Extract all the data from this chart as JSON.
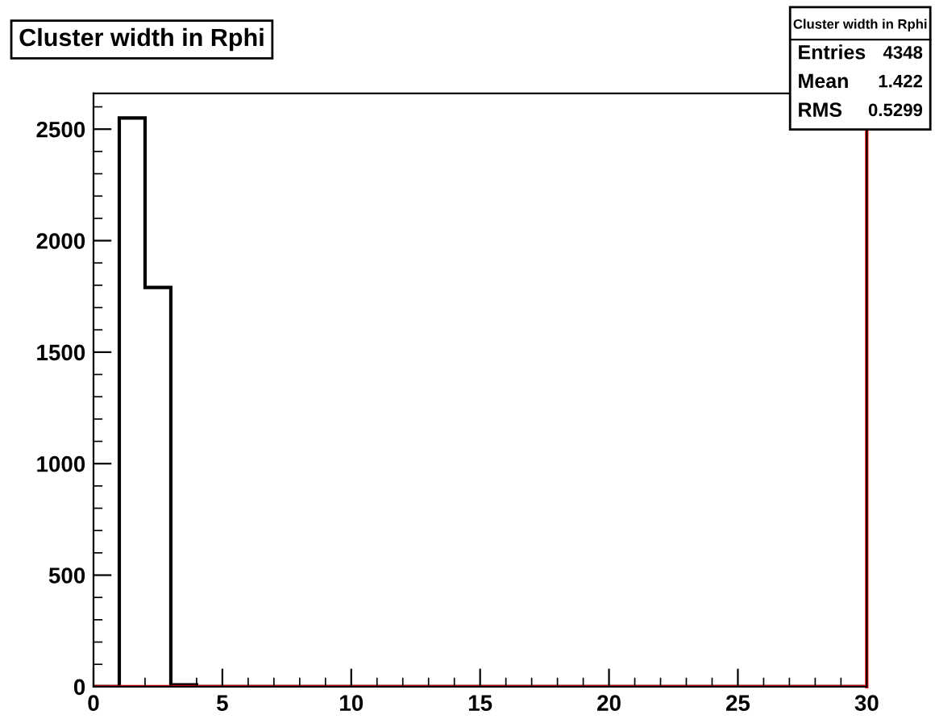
{
  "chart_data": {
    "type": "histogram",
    "title": "Cluster width in Rphi",
    "bins": [
      0,
      1,
      2,
      3,
      4,
      5,
      6,
      7,
      8,
      9,
      10,
      11,
      12,
      13,
      14,
      15,
      16,
      17,
      18,
      19,
      20,
      21,
      22,
      23,
      24,
      25,
      26,
      27,
      28,
      29,
      30
    ],
    "series": [
      {
        "color": "#000000",
        "values": [
          0,
          2550,
          1790,
          8,
          0,
          0,
          0,
          0,
          0,
          0,
          0,
          0,
          0,
          0,
          0,
          0,
          0,
          0,
          0,
          0,
          0,
          0,
          0,
          0,
          0,
          0,
          0,
          0,
          0,
          0
        ]
      },
      {
        "color": "#ff0000",
        "values": [
          0,
          0,
          0,
          0,
          0,
          0,
          0,
          0,
          0,
          0,
          0,
          0,
          0,
          0,
          0,
          0,
          0,
          0,
          0,
          0,
          0,
          0,
          0,
          0,
          0,
          0,
          0,
          0,
          0,
          0
        ]
      }
    ],
    "xlim": [
      0,
      30
    ],
    "xticks": [
      0,
      5,
      10,
      15,
      20,
      25,
      30
    ],
    "ylim": [
      0,
      2660
    ],
    "yticks": [
      0,
      500,
      1000,
      1500,
      2000,
      2500
    ],
    "ref_lines": [
      {
        "axis": "x",
        "value": 30,
        "color": "#ff0000"
      }
    ],
    "annotations": [
      "Cluster width in Rphi",
      "Entries",
      "4348",
      "Mean",
      "1.422",
      "RMS",
      "0.5299"
    ],
    "grid": false
  }
}
